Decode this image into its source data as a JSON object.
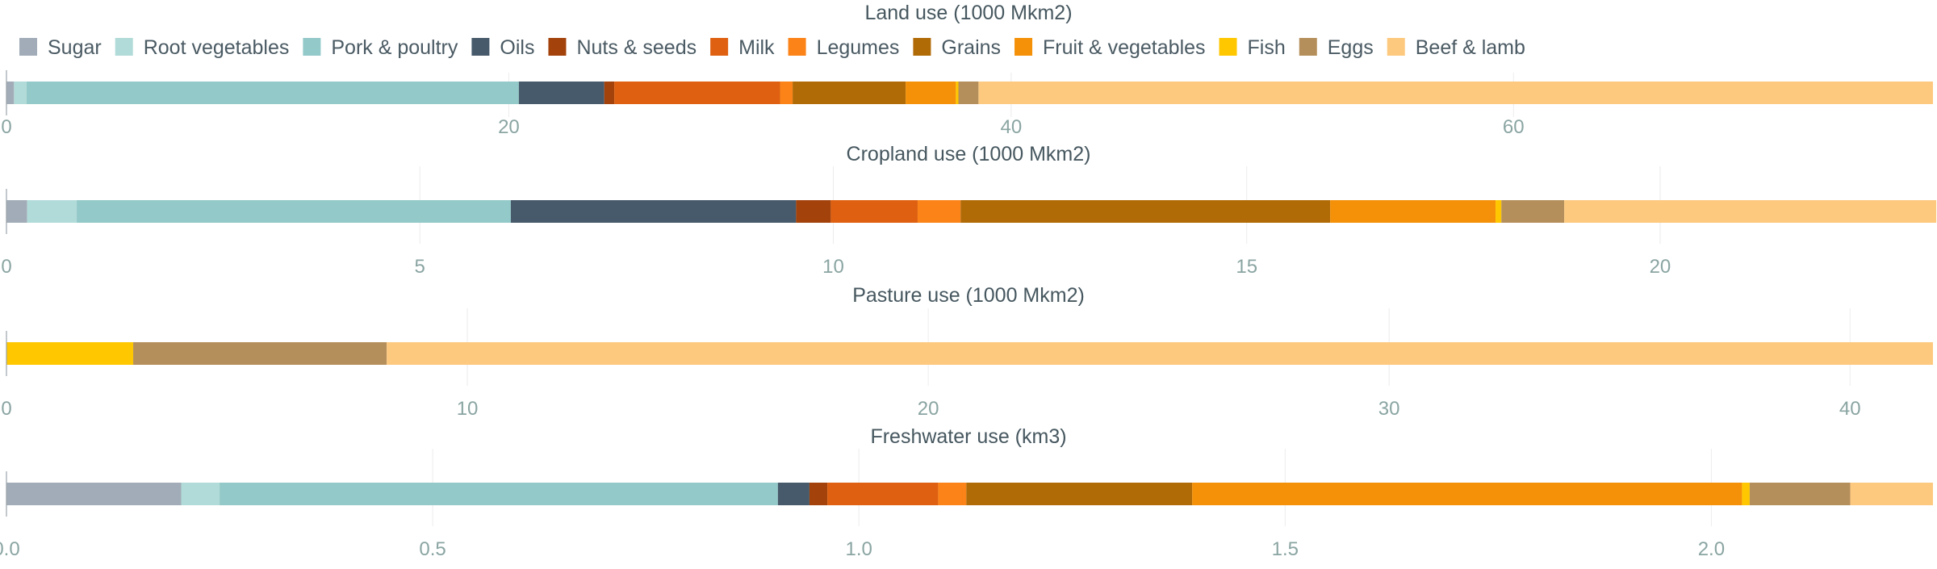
{
  "chart_data": {
    "type": "bar",
    "orientation": "horizontal",
    "stacked": true,
    "legend": {
      "position": "top-left",
      "entries": [
        "Sugar",
        "Root vegetables",
        "Pork & poultry",
        "Oils",
        "Nuts & seeds",
        "Milk",
        "Legumes",
        "Grains",
        "Fruit & vegetables",
        "Fish",
        "Eggs",
        "Beef & lamb"
      ]
    },
    "colors": {
      "Sugar": "#a2acb8",
      "Root vegetables": "#b1dbd8",
      "Pork & poultry": "#93c9c8",
      "Oils": "#465a6b",
      "Nuts & seeds": "#a3420b",
      "Milk": "#de6010",
      "Legumes": "#fb8318",
      "Grains": "#b06a06",
      "Fruit & vegetables": "#f49108",
      "Fish": "#fec700",
      "Eggs": "#b58f5b",
      "Beef & lamb": "#fdc97f",
      "axis_text": "#8aa5a2",
      "title_text": "#46575f",
      "legend_text": "#4a5a63",
      "grid": "#ececec"
    },
    "grid": true,
    "panels": [
      {
        "title": "Land use (1000 Mkm2)",
        "xlim": [
          0,
          76.7
        ],
        "ticks": [
          0,
          20,
          40,
          60
        ],
        "tick_labels": [
          "0",
          "20",
          "40",
          "60"
        ],
        "values": {
          "Sugar": 0.3,
          "Root vegetables": 0.5,
          "Pork & poultry": 19.6,
          "Oils": 3.4,
          "Nuts & seeds": 0.4,
          "Milk": 6.6,
          "Legumes": 0.5,
          "Grains": 4.5,
          "Fruit & vegetables": 2.0,
          "Fish": 0.1,
          "Eggs": 0.8,
          "Beef & lamb": 38.0
        }
      },
      {
        "title": "Cropland use (1000 Mkm2)",
        "xlim": [
          0,
          23.3
        ],
        "ticks": [
          0,
          5,
          10,
          15,
          20
        ],
        "tick_labels": [
          "0",
          "5",
          "10",
          "15",
          "20"
        ],
        "values": {
          "Sugar": 0.25,
          "Root vegetables": 0.6,
          "Pork & poultry": 5.25,
          "Oils": 3.45,
          "Nuts & seeds": 0.42,
          "Milk": 1.05,
          "Legumes": 0.52,
          "Grains": 4.47,
          "Fruit & vegetables": 2.0,
          "Fish": 0.07,
          "Eggs": 0.76,
          "Beef & lamb": 4.5
        }
      },
      {
        "title": "Pasture use (1000 Mkm2)",
        "xlim": [
          0,
          41.8
        ],
        "ticks": [
          0,
          10,
          20,
          30,
          40
        ],
        "tick_labels": [
          "0",
          "10",
          "20",
          "30",
          "40"
        ],
        "values": {
          "Sugar": 0,
          "Root vegetables": 0,
          "Pork & poultry": 0,
          "Oils": 0,
          "Nuts & seeds": 0,
          "Milk": 0,
          "Legumes": 0,
          "Grains": 0,
          "Fruit & vegetables": 0,
          "Fish": 2.75,
          "Eggs": 5.5,
          "Beef & lamb": 33.55
        }
      },
      {
        "title": "Freshwater use (km3)",
        "xlim": [
          0,
          2.26
        ],
        "ticks": [
          0,
          0.5,
          1,
          1.5,
          2
        ],
        "tick_labels": [
          "0.0",
          "0.5",
          "1.0",
          "1.5",
          "2.0"
        ],
        "values": {
          "Sugar": 0.205,
          "Root vegetables": 0.045,
          "Pork & poultry": 0.655,
          "Oils": 0.037,
          "Nuts & seeds": 0.021,
          "Milk": 0.13,
          "Legumes": 0.033,
          "Grains": 0.265,
          "Fruit & vegetables": 0.645,
          "Fish": 0.009,
          "Eggs": 0.118,
          "Beef & lamb": 0.097
        }
      }
    ]
  }
}
